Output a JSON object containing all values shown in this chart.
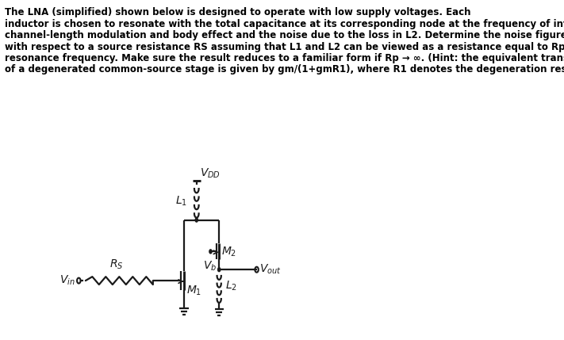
{
  "text_line1": "The LNA (simplified) shown below is designed to operate with low supply voltages. Each",
  "text_line2": "inductor is chosen to resonate with the total capacitance at its corresponding node at the frequency of interest. Neglect",
  "text_line3": "channel-length modulation and body effect and the noise due to the loss in L2. Determine the noise figure of the LNA",
  "text_line4": "with respect to a source resistance RS assuming that L1 and L2 can be viewed as a resistance equal to Rp at the",
  "text_line5": "resonance frequency. Make sure the result reduces to a familiar form if Rp → ∞. (Hint: the equivalent transconductance",
  "text_line6": "of a degenerated common-source stage is given by gm/(1+gmR1), where R1 denotes the degeneration resistance.)",
  "background": "#ffffff",
  "text_color": "#000000",
  "circuit_color": "#1a1a1a",
  "font_size_text": 8.5,
  "lw": 1.6
}
